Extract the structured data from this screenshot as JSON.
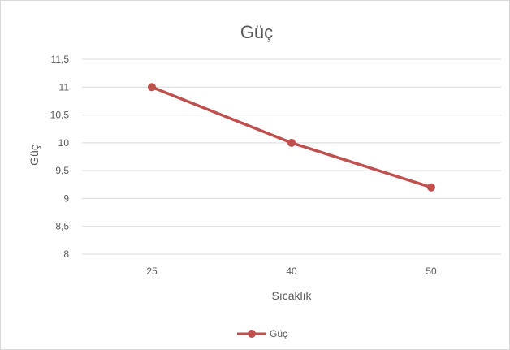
{
  "chart_data": {
    "type": "line",
    "title": "Güç",
    "xlabel": "Sıcaklık",
    "ylabel": "Güç",
    "categories": [
      "25",
      "40",
      "50"
    ],
    "series": [
      {
        "name": "Güç",
        "values": [
          11,
          10,
          9.2
        ],
        "color": "#c0504d"
      }
    ],
    "ylim": [
      8,
      11.5
    ],
    "y_ticks": [
      "8",
      "8,5",
      "9",
      "9,5",
      "10",
      "10,5",
      "11",
      "11,5"
    ],
    "grid": true,
    "legend": "bottom"
  }
}
